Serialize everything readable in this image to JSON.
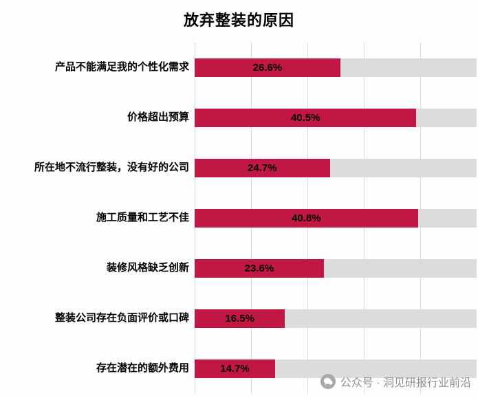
{
  "title": "放弃整装的原因",
  "chart_data": {
    "type": "bar",
    "orientation": "horizontal",
    "title": "放弃整装的原因",
    "categories": [
      "产品不能满足我的个性化需求",
      "价格超出预算",
      "所在地不流行整装，没有好的公司",
      "施工质量和工艺不佳",
      "装修风格缺乏创新",
      "整装公司存在负面评价或口碑",
      "存在潜在的额外费用"
    ],
    "values": [
      26.6,
      40.5,
      24.7,
      40.8,
      23.6,
      16.5,
      14.7
    ],
    "value_labels": [
      "26.6%",
      "40.5%",
      "24.7%",
      "40.8%",
      "23.6%",
      "16.5%",
      "14.7%"
    ],
    "xlim": [
      0,
      51.5
    ],
    "grid": "vertical-lines",
    "bar_color": "#c01745",
    "track_color": "#dcdcdc"
  },
  "watermark": {
    "text": "公众号 · 洞见研报行业前沿",
    "icon": "wechat-chat-icon"
  }
}
